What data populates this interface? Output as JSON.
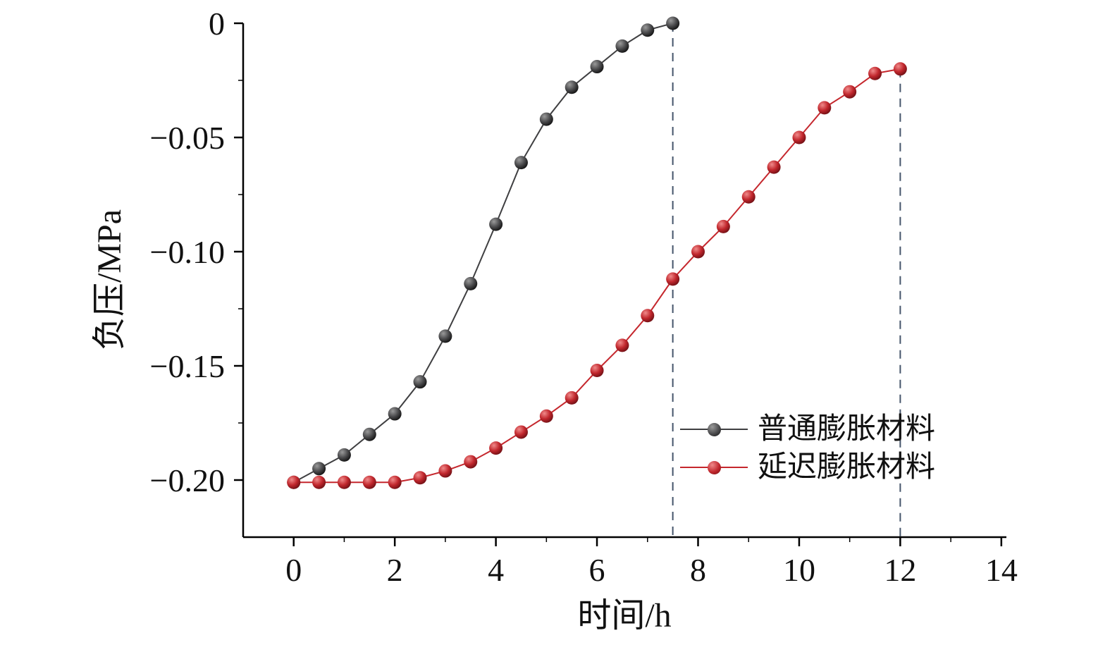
{
  "chart_data": {
    "type": "line",
    "title": "",
    "xlabel": "时间/h",
    "ylabel": "负压/MPa",
    "xlim": [
      -1,
      14.1
    ],
    "ylim": [
      -0.225,
      0
    ],
    "grid": false,
    "legend_position": "lower-right",
    "x_ticks": [
      0,
      2,
      4,
      6,
      8,
      10,
      12,
      14
    ],
    "x_tick_labels": [
      "0",
      "2",
      "4",
      "6",
      "8",
      "10",
      "12",
      "14"
    ],
    "x_minor_ticks": [
      1,
      3,
      5,
      7,
      9,
      11,
      13
    ],
    "y_ticks": [
      0,
      -0.05,
      -0.1,
      -0.15,
      -0.2
    ],
    "y_tick_labels": [
      "0",
      "−0.05",
      "−0.10",
      "−0.15",
      "−0.20"
    ],
    "y_minor_ticks": [
      -0.025,
      -0.075,
      -0.125,
      -0.175
    ],
    "dashed_color": "#44546a",
    "dashed_lines": [
      {
        "x": 7.5,
        "y_top": 0.0
      },
      {
        "x": 12,
        "y_top": -0.02
      }
    ],
    "series": [
      {
        "name": "普通膨胀材料",
        "color": "#3f3f41",
        "marker": {
          "light": "#9a9a9a",
          "base": "#4a4a4c",
          "dark": "#111111"
        },
        "x": [
          0,
          0.5,
          1,
          1.5,
          2,
          2.5,
          3,
          3.5,
          4,
          4.5,
          5,
          5.5,
          6,
          6.5,
          7,
          7.5
        ],
        "y": [
          -0.201,
          -0.195,
          -0.189,
          -0.18,
          -0.171,
          -0.157,
          -0.137,
          -0.114,
          -0.088,
          -0.061,
          -0.042,
          -0.028,
          -0.019,
          -0.01,
          -0.003,
          0.0
        ]
      },
      {
        "name": "延迟膨胀材料",
        "color": "#c5272d",
        "marker": {
          "light": "#f08a8a",
          "base": "#c1272d",
          "dark": "#6e0f14"
        },
        "x": [
          0,
          0.5,
          1,
          1.5,
          2,
          2.5,
          3,
          3.5,
          4,
          4.5,
          5,
          5.5,
          6,
          6.5,
          7,
          7.5,
          8,
          8.5,
          9,
          9.5,
          10,
          10.5,
          11,
          11.5,
          12
        ],
        "y": [
          -0.201,
          -0.201,
          -0.201,
          -0.201,
          -0.201,
          -0.199,
          -0.196,
          -0.192,
          -0.186,
          -0.179,
          -0.172,
          -0.164,
          -0.152,
          -0.141,
          -0.128,
          -0.112,
          -0.1,
          -0.089,
          -0.076,
          -0.063,
          -0.05,
          -0.037,
          -0.03,
          -0.022,
          -0.02
        ]
      }
    ]
  }
}
